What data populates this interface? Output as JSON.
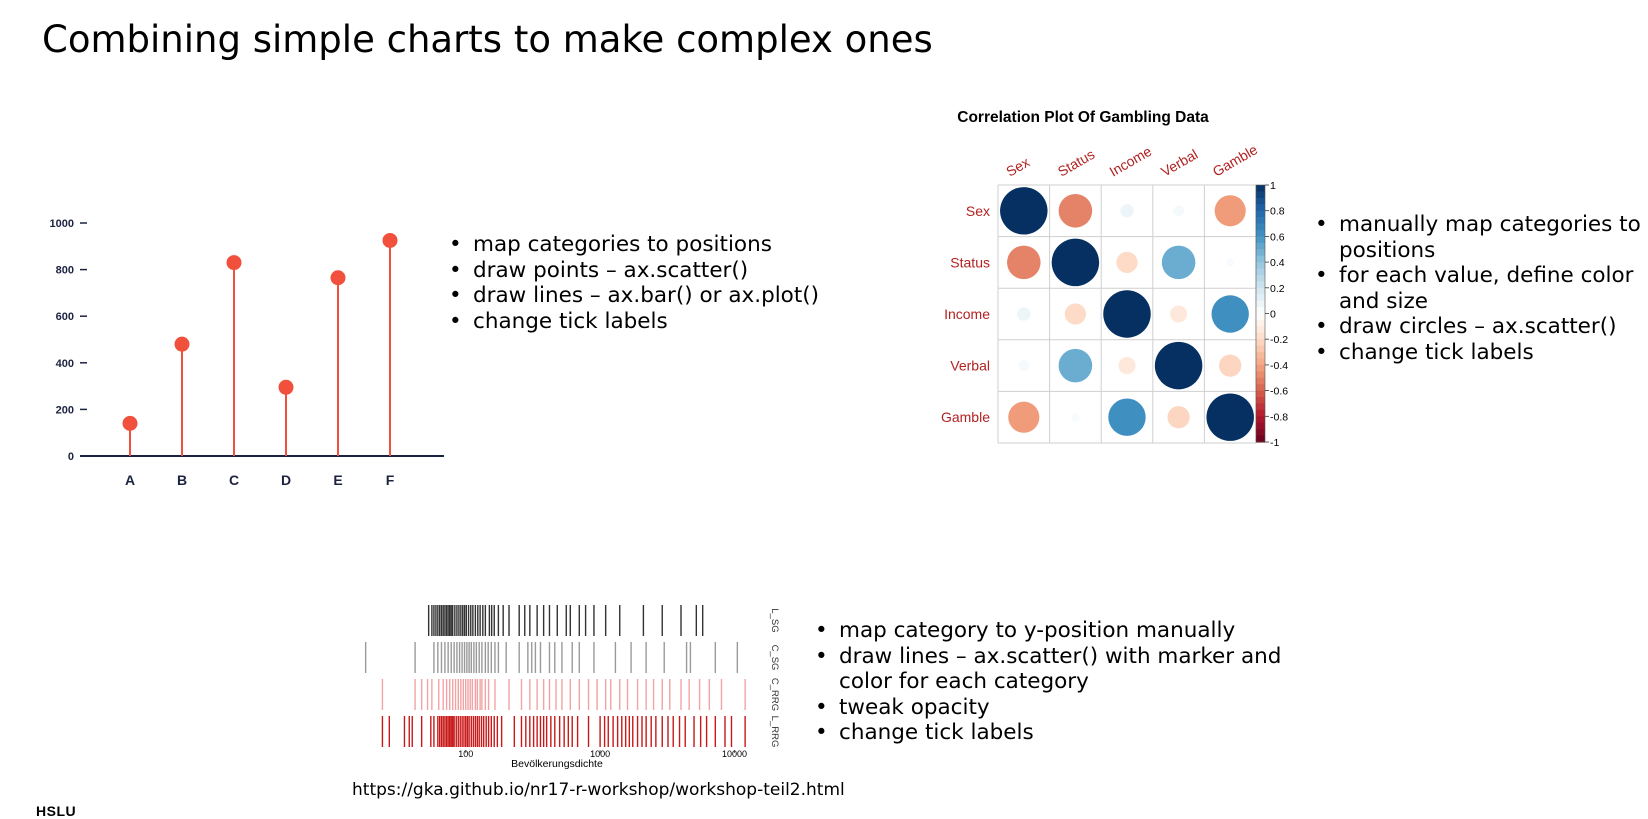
{
  "slide": {
    "title": "Combining simple charts to make complex ones",
    "source_url": "https://gka.github.io/nr17-r-workshop/workshop-teil2.html",
    "logo": "HSLU"
  },
  "bullets_lollipop": [
    "map categories to positions",
    "draw points – ax.scatter()",
    "draw lines – ax.bar() or ax.plot()",
    "change tick labels"
  ],
  "bullets_corrplot": [
    "manually map categories to positions",
    "for each value, define color and size",
    "draw circles – ax.scatter()",
    "change tick labels"
  ],
  "bullets_strip": [
    "map category to y-position manually",
    "draw lines – ax.scatter() with marker and color for each category",
    "tweak opacity",
    "change tick labels"
  ],
  "chart_data": [
    {
      "type": "lollipop",
      "title": "",
      "categories": [
        "A",
        "B",
        "C",
        "D",
        "E",
        "F"
      ],
      "values": [
        140,
        480,
        830,
        295,
        765,
        925
      ],
      "ylim": [
        0,
        1000
      ],
      "yticks": [
        0,
        200,
        400,
        600,
        800,
        1000
      ],
      "colors": {
        "marker": "#f0503c",
        "stem": "#f0503c",
        "axis": "#1c2340"
      }
    },
    {
      "type": "heatmap",
      "title": "Correlation Plot Of Gambling Data",
      "variables": [
        "Sex",
        "Status",
        "Income",
        "Verbal",
        "Gamble"
      ],
      "matrix": [
        [
          1.0,
          -0.5,
          0.08,
          0.05,
          -0.43
        ],
        [
          -0.5,
          1.0,
          -0.2,
          0.5,
          0.03
        ],
        [
          0.08,
          -0.2,
          1.0,
          -0.13,
          0.62
        ],
        [
          0.05,
          0.5,
          -0.13,
          1.0,
          -0.22
        ],
        [
          -0.43,
          0.03,
          0.62,
          -0.22,
          1.0
        ]
      ],
      "colorbar_ticks": [
        "1",
        "0.8",
        "0.6",
        "0.4",
        "0.2",
        "0",
        "-0.2",
        "-0.4",
        "-0.6",
        "-0.8",
        "-1"
      ],
      "colors": {
        "positive": "#053061",
        "negative": "#67001f",
        "label": "#b22222"
      }
    },
    {
      "type": "strip",
      "title": "",
      "xlabel": "Bevölkerungsdichte",
      "xscale": "log",
      "xticks": [
        "100",
        "1000",
        "10000"
      ],
      "series": [
        {
          "name": "L_SG",
          "color": "#333333",
          "values": [
            53,
            56,
            58,
            60,
            62,
            64,
            66,
            68,
            70,
            72,
            74,
            76,
            78,
            80,
            83,
            86,
            89,
            92,
            95,
            98,
            101,
            105,
            109,
            113,
            118,
            123,
            128,
            134,
            140,
            150,
            156,
            163,
            175,
            190,
            210,
            250,
            275,
            300,
            340,
            380,
            420,
            480,
            560,
            600,
            700,
            780,
            900,
            1100,
            1400,
            2100,
            2900,
            4000,
            5200,
            5800
          ]
        },
        {
          "name": "C_SG",
          "color": "#9a9a9a",
          "values": [
            18,
            42,
            58,
            62,
            66,
            70,
            74,
            78,
            82,
            86,
            90,
            94,
            98,
            102,
            106,
            110,
            115,
            120,
            126,
            132,
            140,
            147,
            155,
            165,
            175,
            200,
            250,
            290,
            310,
            330,
            360,
            420,
            460,
            520,
            620,
            700,
            900,
            1300,
            1700,
            2200,
            3000,
            4400,
            4700,
            7200,
            10500
          ]
        },
        {
          "name": "C_RRG",
          "color": "#f2a3a3",
          "values": [
            24,
            42,
            47,
            52,
            56,
            63,
            68,
            72,
            76,
            80,
            84,
            88,
            92,
            96,
            100,
            104,
            108,
            112,
            118,
            122,
            128,
            132,
            140,
            148,
            165,
            210,
            260,
            300,
            340,
            380,
            420,
            470,
            520,
            600,
            700,
            820,
            950,
            1100,
            1200,
            1400,
            1600,
            1900,
            2200,
            2500,
            2900,
            3300,
            4000,
            4600,
            5500,
            6500,
            8000,
            12000
          ]
        },
        {
          "name": "L_RRG",
          "color": "#c81818",
          "values": [
            24,
            27,
            35,
            38,
            40,
            47,
            55,
            58,
            62,
            64,
            66,
            68,
            70,
            72,
            74,
            76,
            78,
            80,
            82,
            85,
            88,
            91,
            94,
            97,
            100,
            103,
            106,
            110,
            114,
            118,
            122,
            126,
            131,
            136,
            142,
            148,
            155,
            163,
            172,
            185,
            230,
            260,
            280,
            300,
            320,
            340,
            360,
            380,
            400,
            430,
            460,
            500,
            540,
            580,
            620,
            680,
            820,
            1000,
            1080,
            1150,
            1250,
            1350,
            1450,
            1550,
            1650,
            1750,
            1900,
            2050,
            2200,
            2400,
            2600,
            2900,
            3200,
            3500,
            3900,
            4300,
            5000,
            5600,
            6200,
            7200,
            8500,
            9500,
            12000
          ]
        }
      ]
    }
  ]
}
